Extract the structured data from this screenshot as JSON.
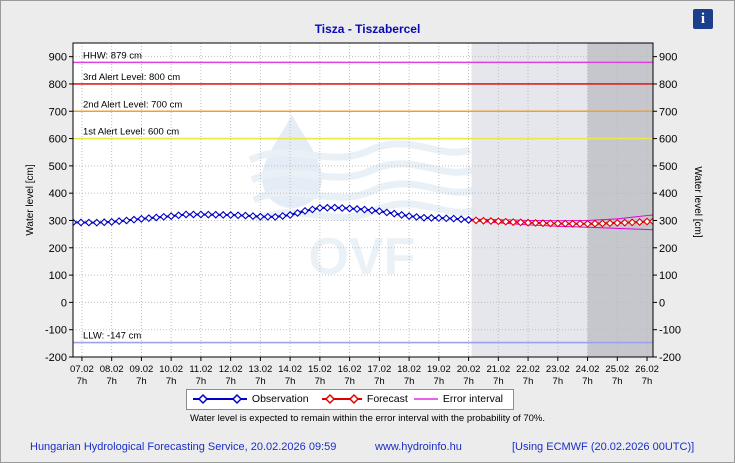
{
  "title": "Tisza - Tiszabercel",
  "info_icon": "info-icon",
  "legend": {
    "observation": "Observation",
    "forecast": "Forecast",
    "error_interval": "Error interval"
  },
  "note": "Water level is expected to remain within the error interval with the probability of 70%.",
  "footer": {
    "org": "Hungarian Hydrological Forecasting Service, 20.02.2026 09:59",
    "url": "www.hydroinfo.hu",
    "model": "[Using ECMWF (20.02.2026  00UTC)]"
  },
  "colors": {
    "observation": "#0000c8",
    "forecast": "#e00000",
    "error_interval": "#dd00dd",
    "hhw": "#e040e0",
    "alert3": "#dd2222",
    "alert2": "#f0a030",
    "alert1": "#e8e84a",
    "llw": "#a0a0f0"
  },
  "chart_data": {
    "type": "line",
    "ylabel_left": "Water level [cm]",
    "ylabel_right": "Water level [cm]",
    "ylim": [
      -200,
      950
    ],
    "yticks": [
      -200,
      -100,
      0,
      100,
      200,
      300,
      400,
      500,
      600,
      700,
      800,
      900
    ],
    "xlim": [
      6.7,
      26.2
    ],
    "xtick_dates": [
      "07.02",
      "08.02",
      "09.02",
      "10.02",
      "11.02",
      "12.02",
      "13.02",
      "14.02",
      "15.02",
      "16.02",
      "17.02",
      "18.02",
      "19.02",
      "20.02",
      "21.02",
      "22.02",
      "23.02",
      "24.02",
      "25.02",
      "26.02"
    ],
    "xtick_time": "7h",
    "forecast_start": 20.1,
    "late_forecast_start": 24.0,
    "levels": [
      {
        "name": "HHW: 879 cm",
        "value": 879
      },
      {
        "name": "3rd Alert Level: 800 cm",
        "value": 800
      },
      {
        "name": "2nd Alert Level: 700 cm",
        "value": 700
      },
      {
        "name": "1st Alert Level: 600 cm",
        "value": 600
      },
      {
        "name": "LLW: -147 cm",
        "value": -147
      }
    ],
    "observation": [
      [
        6.7,
        293
      ],
      [
        7.5,
        292
      ],
      [
        8.0,
        295
      ],
      [
        8.5,
        300
      ],
      [
        9.0,
        306
      ],
      [
        9.5,
        311
      ],
      [
        10.0,
        316
      ],
      [
        10.5,
        322
      ],
      [
        11.0,
        322
      ],
      [
        11.5,
        321
      ],
      [
        12.0,
        320
      ],
      [
        12.5,
        318
      ],
      [
        13.0,
        314
      ],
      [
        13.5,
        313
      ],
      [
        14.0,
        320
      ],
      [
        14.5,
        335
      ],
      [
        15.0,
        346
      ],
      [
        15.5,
        347
      ],
      [
        16.0,
        344
      ],
      [
        16.5,
        340
      ],
      [
        17.0,
        334
      ],
      [
        17.5,
        325
      ],
      [
        18.0,
        316
      ],
      [
        18.5,
        310
      ],
      [
        19.0,
        309
      ],
      [
        19.5,
        307
      ],
      [
        20.0,
        302
      ]
    ],
    "forecast": [
      [
        20.0,
        302
      ],
      [
        20.5,
        299
      ],
      [
        21.0,
        297
      ],
      [
        21.5,
        294
      ],
      [
        22.0,
        292
      ],
      [
        22.5,
        290
      ],
      [
        23.0,
        289
      ],
      [
        23.5,
        288
      ],
      [
        24.0,
        288
      ],
      [
        24.5,
        289
      ],
      [
        25.0,
        291
      ],
      [
        25.5,
        293
      ],
      [
        26.0,
        296
      ],
      [
        26.2,
        297
      ]
    ],
    "error_upper": [
      [
        20.1,
        305
      ],
      [
        21.0,
        303
      ],
      [
        22.0,
        300
      ],
      [
        23.0,
        299
      ],
      [
        24.0,
        300
      ],
      [
        25.0,
        306
      ],
      [
        26.0,
        318
      ],
      [
        26.2,
        320
      ]
    ],
    "error_lower": [
      [
        20.1,
        299
      ],
      [
        21.0,
        291
      ],
      [
        22.0,
        284
      ],
      [
        23.0,
        279
      ],
      [
        24.0,
        275
      ],
      [
        25.0,
        271
      ],
      [
        26.0,
        267
      ],
      [
        26.2,
        266
      ]
    ]
  }
}
